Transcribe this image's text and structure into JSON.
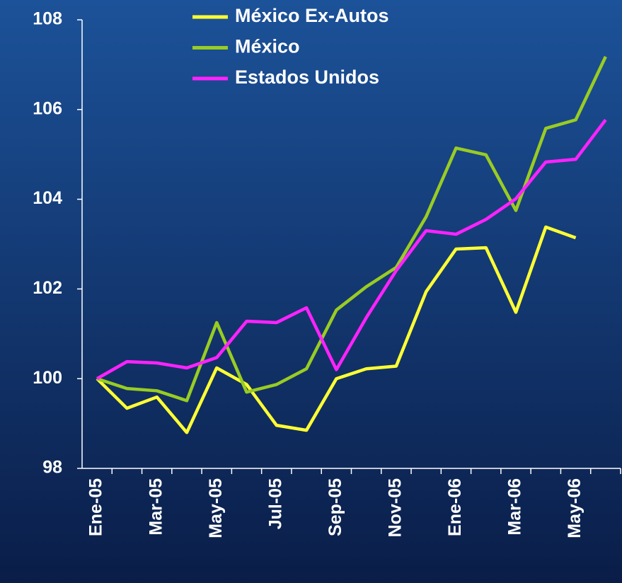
{
  "chart_data": {
    "type": "line",
    "categories": [
      "Ene-05",
      null,
      "Mar-05",
      null,
      "May-05",
      null,
      "Jul-05",
      null,
      "Sep-05",
      null,
      "Nov-05",
      null,
      "Ene-06",
      null,
      "Mar-06",
      null,
      "May-06",
      null
    ],
    "series": [
      {
        "name": "México Ex-Autos",
        "color": "#ffff33",
        "values": [
          100,
          99.34,
          99.59,
          98.8,
          100.24,
          99.87,
          98.96,
          98.85,
          100,
          100.22,
          100.28,
          101.94,
          102.89,
          102.92,
          101.48,
          103.38,
          103.14,
          null
        ]
      },
      {
        "name": "México",
        "color": "#99cc22",
        "values": [
          100,
          99.78,
          99.73,
          99.51,
          101.25,
          99.7,
          99.87,
          100.22,
          101.53,
          102.05,
          102.48,
          103.61,
          105.14,
          104.99,
          103.75,
          105.58,
          105.77,
          107.18
        ]
      },
      {
        "name": "Estados Unidos",
        "color": "#ff22ff",
        "values": [
          100,
          100.38,
          100.35,
          100.24,
          100.47,
          101.28,
          101.25,
          101.58,
          100.2,
          101.36,
          102.41,
          103.3,
          103.22,
          103.55,
          104.01,
          104.83,
          104.89,
          105.77
        ]
      }
    ],
    "ylim": [
      98,
      108
    ],
    "yticks": [
      98,
      100,
      102,
      104,
      106,
      108
    ],
    "grid": false,
    "legend": "top"
  }
}
